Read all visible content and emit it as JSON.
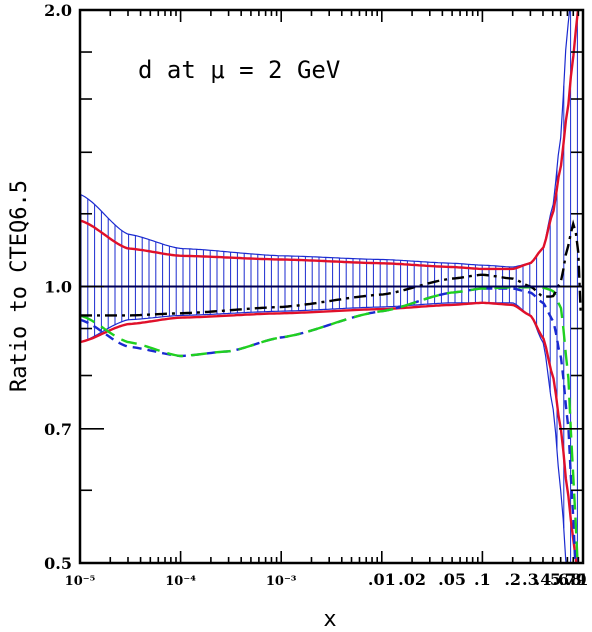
{
  "chart_data": {
    "type": "line",
    "title": "",
    "annotation": "d at μ = 2 GeV",
    "xlabel": "x",
    "ylabel": "Ratio to CTEQ6.5",
    "xscale": "log",
    "xlim": [
      1e-05,
      1.0
    ],
    "ylim": [
      0.5,
      2.0
    ],
    "yscale": "log",
    "grid": false,
    "x_ticks": [
      {
        "value": 1e-05,
        "label": "10⁻⁵"
      },
      {
        "value": 0.0001,
        "label": "10⁻⁴"
      },
      {
        "value": 0.001,
        "label": "10⁻³"
      },
      {
        "value": 0.01,
        "label": ".01"
      },
      {
        "value": 0.02,
        "label": ".02"
      },
      {
        "value": 0.05,
        "label": ".05"
      },
      {
        "value": 0.1,
        "label": ".1"
      },
      {
        "value": 0.2,
        "label": ".2"
      },
      {
        "value": 0.3,
        "label": ".3"
      },
      {
        "value": 0.4,
        "label": ".4"
      },
      {
        "value": 0.5,
        "label": ".5"
      },
      {
        "value": 0.6,
        "label": ".6"
      },
      {
        "value": 0.7,
        "label": ".7"
      },
      {
        "value": 0.8,
        "label": ".8"
      },
      {
        "value": 0.9,
        "label": ".9"
      },
      {
        "value": 1.0,
        "label": "1"
      }
    ],
    "y_ticks": [
      {
        "value": 0.5,
        "label": "0.5"
      },
      {
        "value": 0.7,
        "label": "0.7"
      },
      {
        "value": 1.0,
        "label": "1.0"
      },
      {
        "value": 2.0,
        "label": "2.0"
      }
    ],
    "reference_line": {
      "y": 1.0,
      "color": "#000050"
    },
    "band": {
      "color": "#1a2ad0",
      "x": [
        1e-05,
        3e-05,
        0.0001,
        0.001,
        0.01,
        0.05,
        0.1,
        0.2,
        0.3,
        0.4,
        0.5,
        0.6,
        0.7,
        0.75,
        0.8,
        0.85,
        0.9,
        0.95
      ],
      "upper": [
        1.26,
        1.14,
        1.1,
        1.08,
        1.07,
        1.06,
        1.055,
        1.05,
        1.06,
        1.1,
        1.22,
        1.45,
        1.9,
        2.05,
        2.05,
        2.05,
        2.05,
        2.05
      ],
      "lower": [
        0.87,
        0.92,
        0.93,
        0.94,
        0.95,
        0.96,
        0.96,
        0.96,
        0.93,
        0.87,
        0.74,
        0.6,
        0.48,
        0.48,
        0.48,
        0.48,
        0.48,
        0.48
      ]
    },
    "series": [
      {
        "style": "solid",
        "color": "#e0102a",
        "x": [
          1e-05,
          3e-05,
          0.0001,
          0.001,
          0.01,
          0.05,
          0.1,
          0.2,
          0.3,
          0.4,
          0.5,
          0.6,
          0.7,
          0.8,
          0.9
        ],
        "values": [
          1.18,
          1.1,
          1.08,
          1.07,
          1.06,
          1.05,
          1.045,
          1.045,
          1.06,
          1.1,
          1.2,
          1.35,
          1.55,
          1.78,
          2.02
        ]
      },
      {
        "style": "solid",
        "color": "#e0102a",
        "x": [
          1e-05,
          3e-05,
          0.0001,
          0.001,
          0.01,
          0.05,
          0.1,
          0.2,
          0.3,
          0.4,
          0.5,
          0.6,
          0.7,
          0.8,
          0.9
        ],
        "values": [
          0.87,
          0.91,
          0.925,
          0.935,
          0.945,
          0.955,
          0.96,
          0.955,
          0.93,
          0.88,
          0.8,
          0.7,
          0.6,
          0.53,
          0.48
        ]
      },
      {
        "style": "dashed",
        "color": "#1a2ad0",
        "x": [
          1e-05,
          3e-05,
          0.0001,
          0.0003,
          0.001,
          0.01,
          0.05,
          0.1,
          0.2,
          0.3,
          0.4,
          0.5,
          0.6,
          0.7,
          0.8,
          0.85
        ],
        "values": [
          0.92,
          0.86,
          0.84,
          0.85,
          0.88,
          0.94,
          0.985,
          0.995,
          0.995,
          0.985,
          0.96,
          0.92,
          0.84,
          0.72,
          0.56,
          0.48
        ]
      },
      {
        "style": "longdash",
        "color": "#20d020",
        "x": [
          1e-05,
          3e-05,
          0.0001,
          0.0003,
          0.001,
          0.01,
          0.05,
          0.1,
          0.2,
          0.3,
          0.4,
          0.5,
          0.6,
          0.7,
          0.8,
          0.9
        ],
        "values": [
          0.93,
          0.87,
          0.84,
          0.85,
          0.88,
          0.94,
          0.985,
          0.995,
          0.998,
          0.998,
          0.997,
          0.99,
          0.95,
          0.82,
          0.62,
          0.48
        ]
      },
      {
        "style": "dashdot",
        "color": "#000000",
        "x": [
          1e-05,
          3e-05,
          0.0001,
          0.001,
          0.01,
          0.05,
          0.1,
          0.2,
          0.3,
          0.4,
          0.5,
          0.6,
          0.7,
          0.8,
          0.88,
          0.95
        ],
        "values": [
          0.93,
          0.93,
          0.935,
          0.95,
          0.98,
          1.02,
          1.03,
          1.02,
          1.0,
          0.975,
          0.975,
          1.01,
          1.1,
          1.17,
          1.13,
          0.93
        ]
      }
    ]
  }
}
